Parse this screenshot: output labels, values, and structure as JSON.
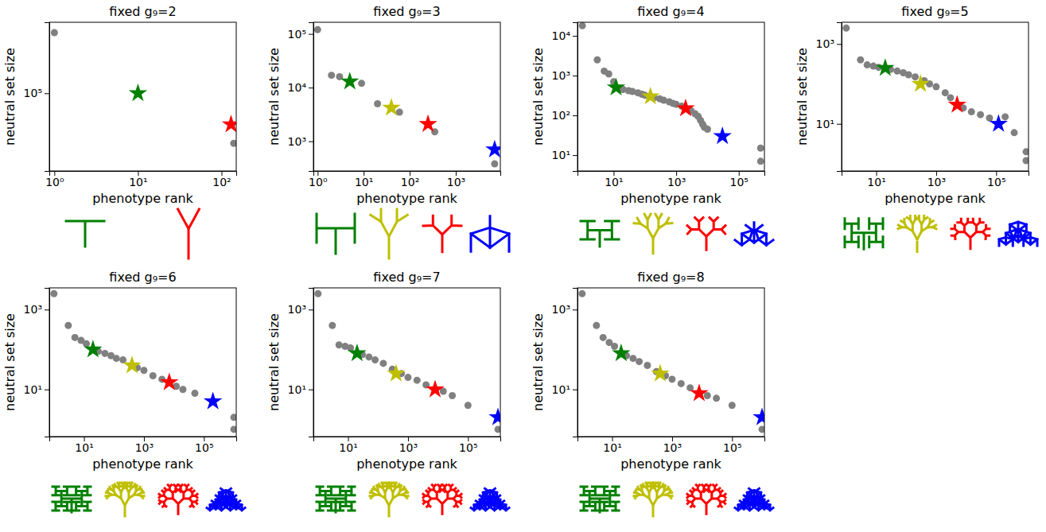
{
  "chart_data": [
    {
      "type": "scatter",
      "title": "fixed g₉=2",
      "xlabel": "phenotype rank",
      "ylabel": "neutral set size",
      "log": true,
      "xlim": [
        0.87,
        150
      ],
      "ylim": [
        28000,
        320000
      ],
      "xticks": [
        {
          "value": 1,
          "label": "10⁰"
        },
        {
          "value": 10,
          "label": "10¹"
        },
        {
          "value": 100,
          "label": "10²"
        }
      ],
      "yticks": [
        {
          "value": 100000,
          "label": "10⁵"
        }
      ],
      "series": [
        {
          "color": "#808080",
          "marker": "circle",
          "x": [
            1,
            140
          ],
          "values": [
            270000,
            44000
          ]
        },
        {
          "colors": [
            "#008000",
            "#ff0000"
          ],
          "marker": "star",
          "x": [
            10,
            130
          ],
          "values": [
            100000,
            60000
          ]
        }
      ]
    },
    {
      "type": "scatter",
      "title": "fixed g₉=3",
      "xlabel": "phenotype rank",
      "ylabel": "neutral set size",
      "log": true,
      "xlim": [
        0.81,
        9300
      ],
      "ylim": [
        280,
        165000
      ],
      "xticks": [
        {
          "value": 1,
          "label": "10⁰"
        },
        {
          "value": 10,
          "label": "10¹"
        },
        {
          "value": 100,
          "label": "10²"
        },
        {
          "value": 1000,
          "label": "10³"
        }
      ],
      "yticks": [
        {
          "value": 1000,
          "label": "10³"
        },
        {
          "value": 10000,
          "label": "10⁴"
        },
        {
          "value": 100000,
          "label": "10⁵"
        }
      ],
      "series": [
        {
          "color": "#808080",
          "marker": "circle",
          "x": [
            1,
            2,
            3,
            9,
            20,
            60,
            350,
            7000
          ],
          "values": [
            120000,
            17000,
            16000,
            12000,
            5000,
            3500,
            1500,
            380
          ]
        },
        {
          "colors": [
            "#008000",
            "#bfbf00",
            "#ff0000",
            "#0000ff"
          ],
          "marker": "star",
          "x": [
            5,
            40,
            250,
            7000
          ],
          "values": [
            13000,
            4200,
            2100,
            700
          ]
        }
      ]
    },
    {
      "type": "scatter",
      "title": "fixed g₉=4",
      "xlabel": "phenotype rank",
      "ylabel": "neutral set size",
      "log": true,
      "xlim": [
        0.7,
        660000
      ],
      "ylim": [
        4,
        22000
      ],
      "xticks": [
        {
          "value": 10,
          "label": "10¹"
        },
        {
          "value": 1000,
          "label": "10³"
        },
        {
          "value": 100000,
          "label": "10⁵"
        }
      ],
      "yticks": [
        {
          "value": 10,
          "label": "10¹"
        },
        {
          "value": 100,
          "label": "10²"
        },
        {
          "value": 1000,
          "label": "10³"
        },
        {
          "value": 10000,
          "label": "10⁴"
        }
      ],
      "series": [
        {
          "color": "#808080",
          "marker": "circle",
          "x": [
            1,
            3,
            5,
            7,
            10,
            15,
            20,
            30,
            40,
            60,
            80,
            100,
            150,
            200,
            300,
            400,
            600,
            800,
            1000,
            1500,
            3000,
            4000,
            5000,
            6000,
            7000,
            8000,
            10000,
            500000,
            500000
          ],
          "values": [
            18000,
            2500,
            1300,
            1100,
            700,
            480,
            450,
            420,
            400,
            370,
            340,
            320,
            300,
            280,
            260,
            240,
            220,
            200,
            190,
            170,
            130,
            110,
            95,
            75,
            60,
            50,
            45,
            15,
            7
          ]
        },
        {
          "colors": [
            "#008000",
            "#bfbf00",
            "#ff0000",
            "#0000ff"
          ],
          "marker": "star",
          "x": [
            12,
            150,
            2000,
            30000
          ],
          "values": [
            500,
            300,
            150,
            30
          ]
        }
      ]
    },
    {
      "type": "scatter",
      "title": "fixed g₉=5",
      "xlabel": "phenotype rank",
      "ylabel": "neutral set size",
      "log": true,
      "xlim": [
        0.7,
        1200000
      ],
      "ylim": [
        0.66,
        3500
      ],
      "xticks": [
        {
          "value": 10,
          "label": "10¹"
        },
        {
          "value": 1000,
          "label": "10³"
        },
        {
          "value": 100000,
          "label": "10⁵"
        }
      ],
      "yticks": [
        {
          "value": 10,
          "label": "10¹"
        },
        {
          "value": 1000,
          "label": "10³"
        }
      ],
      "series": [
        {
          "color": "#808080",
          "marker": "circle",
          "x": [
            1,
            3,
            5,
            8,
            12,
            30,
            50,
            80,
            120,
            200,
            400,
            600,
            1000,
            2000,
            3000,
            8000,
            15000,
            30000,
            60000,
            200000,
            400000,
            1000000,
            1000000
          ],
          "values": [
            2500,
            400,
            300,
            280,
            260,
            230,
            210,
            190,
            170,
            150,
            120,
            100,
            85,
            60,
            45,
            25,
            20,
            17,
            14,
            15,
            6,
            2,
            1.2
          ]
        },
        {
          "colors": [
            "#008000",
            "#bfbf00",
            "#ff0000",
            "#0000ff"
          ],
          "marker": "star",
          "x": [
            20,
            300,
            5000,
            120000
          ],
          "values": [
            250,
            100,
            30,
            10
          ]
        }
      ]
    },
    {
      "type": "scatter",
      "title": "fixed g₉=6",
      "xlabel": "phenotype rank",
      "ylabel": "neutral set size",
      "log": true,
      "xlim": [
        0.7,
        1200000
      ],
      "ylim": [
        0.66,
        3500
      ],
      "xticks": [
        {
          "value": 10,
          "label": "10¹"
        },
        {
          "value": 1000,
          "label": "10³"
        },
        {
          "value": 100000,
          "label": "10⁵"
        }
      ],
      "yticks": [
        {
          "value": 10,
          "label": "10¹"
        },
        {
          "value": 1000,
          "label": "10³"
        }
      ],
      "series": [
        {
          "color": "#808080",
          "marker": "circle",
          "x": [
            1,
            3,
            5,
            8,
            12,
            30,
            50,
            80,
            120,
            200,
            600,
            1000,
            2000,
            4000,
            12000,
            20000,
            50000,
            1000000,
            1000000
          ],
          "values": [
            2500,
            400,
            200,
            170,
            140,
            90,
            80,
            70,
            60,
            55,
            35,
            30,
            22,
            18,
            12,
            10,
            8,
            2,
            1
          ]
        },
        {
          "colors": [
            "#008000",
            "#bfbf00",
            "#ff0000",
            "#0000ff"
          ],
          "marker": "star",
          "x": [
            20,
            400,
            7000,
            200000
          ],
          "values": [
            100,
            40,
            15,
            5
          ]
        }
      ]
    },
    {
      "type": "scatter",
      "title": "fixed g₉=7",
      "xlabel": "phenotype rank",
      "ylabel": "neutral set size",
      "log": true,
      "xlim": [
        0.7,
        1200000
      ],
      "ylim": [
        0.66,
        3500
      ],
      "xticks": [
        {
          "value": 10,
          "label": "10¹"
        },
        {
          "value": 1000,
          "label": "10³"
        },
        {
          "value": 100000,
          "label": "10⁵"
        }
      ],
      "yticks": [
        {
          "value": 10,
          "label": "10¹"
        },
        {
          "value": 1000,
          "label": "10³"
        }
      ],
      "series": [
        {
          "color": "#808080",
          "marker": "circle",
          "x": [
            1,
            3,
            5,
            8,
            12,
            30,
            50,
            80,
            150,
            300,
            600,
            1000,
            2000,
            4000,
            15000,
            30000,
            100000,
            1000000
          ],
          "values": [
            2500,
            400,
            130,
            120,
            110,
            75,
            65,
            55,
            45,
            32,
            25,
            20,
            17,
            13,
            9,
            7,
            4,
            1
          ]
        },
        {
          "colors": [
            "#008000",
            "#bfbf00",
            "#ff0000",
            "#0000ff"
          ],
          "marker": "star",
          "x": [
            20,
            400,
            8000,
            1000000
          ],
          "values": [
            80,
            25,
            10,
            2
          ]
        }
      ]
    },
    {
      "type": "scatter",
      "title": "fixed g₉=8",
      "xlabel": "phenotype rank",
      "ylabel": "neutral set size",
      "log": true,
      "xlim": [
        0.7,
        1200000
      ],
      "ylim": [
        0.66,
        3500
      ],
      "xticks": [
        {
          "value": 10,
          "label": "10¹"
        },
        {
          "value": 1000,
          "label": "10³"
        },
        {
          "value": 100000,
          "label": "10⁵"
        }
      ],
      "yticks": [
        {
          "value": 10,
          "label": "10¹"
        },
        {
          "value": 1000,
          "label": "10³"
        }
      ],
      "series": [
        {
          "color": "#808080",
          "marker": "circle",
          "x": [
            1,
            3,
            5,
            8,
            12,
            30,
            50,
            80,
            150,
            300,
            600,
            1000,
            2000,
            4000,
            15000,
            30000,
            100000,
            1000000
          ],
          "values": [
            2500,
            400,
            200,
            150,
            120,
            70,
            60,
            50,
            40,
            28,
            22,
            18,
            14,
            11,
            7,
            6,
            4,
            1
          ]
        },
        {
          "colors": [
            "#008000",
            "#bfbf00",
            "#ff0000",
            "#0000ff"
          ],
          "marker": "star",
          "x": [
            20,
            400,
            8000,
            1000000
          ],
          "values": [
            80,
            25,
            8,
            2
          ]
        }
      ]
    }
  ]
}
